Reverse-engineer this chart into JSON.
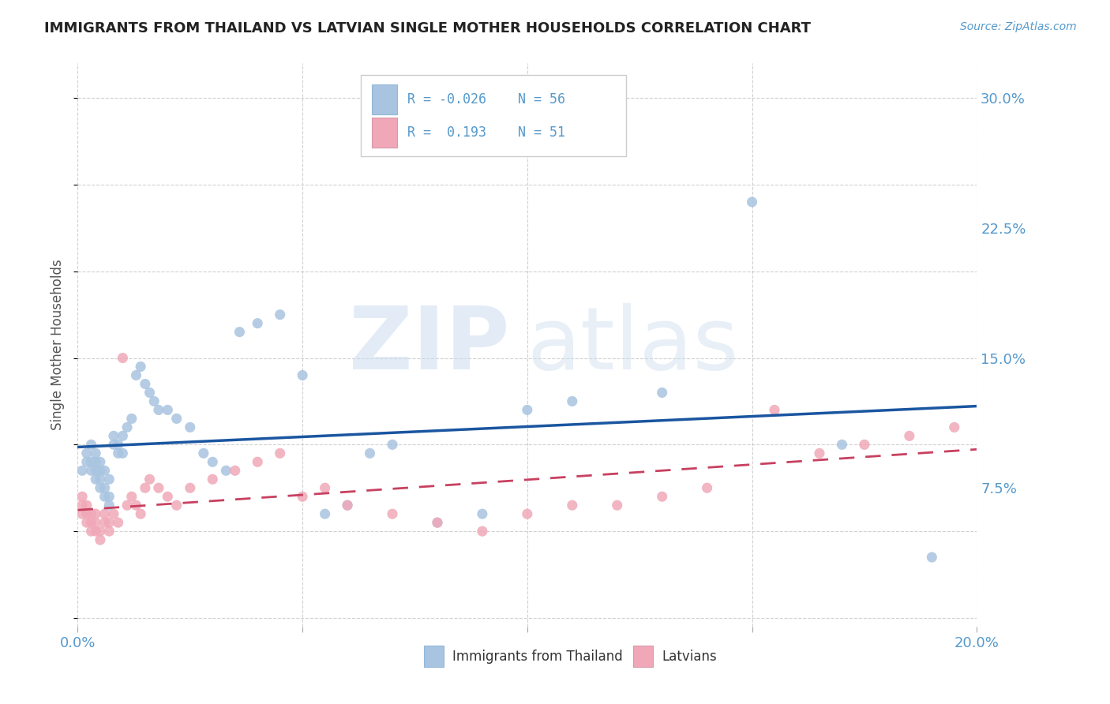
{
  "title": "IMMIGRANTS FROM THAILAND VS LATVIAN SINGLE MOTHER HOUSEHOLDS CORRELATION CHART",
  "source": "Source: ZipAtlas.com",
  "ylabel": "Single Mother Households",
  "xlim": [
    0.0,
    0.2
  ],
  "ylim": [
    -0.005,
    0.32
  ],
  "ytick_right": [
    0.075,
    0.15,
    0.225,
    0.3
  ],
  "ytick_right_labels": [
    "7.5%",
    "15.0%",
    "22.5%",
    "30.0%"
  ],
  "legend_r1": "R = -0.026",
  "legend_n1": "N = 56",
  "legend_r2": "R =  0.193",
  "legend_n2": "N = 51",
  "color_blue": "#a8c4e0",
  "color_pink": "#f0a8b8",
  "line_blue": "#1a56a0",
  "line_pink": "#c84060",
  "title_color": "#222222",
  "axis_color": "#5599cc",
  "grid_color": "#cccccc",
  "thailand_x": [
    0.001,
    0.002,
    0.002,
    0.003,
    0.003,
    0.003,
    0.004,
    0.004,
    0.004,
    0.004,
    0.005,
    0.005,
    0.005,
    0.005,
    0.006,
    0.006,
    0.006,
    0.007,
    0.007,
    0.007,
    0.008,
    0.008,
    0.009,
    0.009,
    0.01,
    0.01,
    0.011,
    0.012,
    0.013,
    0.014,
    0.015,
    0.016,
    0.017,
    0.018,
    0.02,
    0.022,
    0.025,
    0.028,
    0.03,
    0.033,
    0.036,
    0.04,
    0.045,
    0.05,
    0.055,
    0.06,
    0.065,
    0.07,
    0.08,
    0.09,
    0.1,
    0.11,
    0.13,
    0.15,
    0.17,
    0.19
  ],
  "thailand_y": [
    0.085,
    0.09,
    0.095,
    0.085,
    0.09,
    0.1,
    0.08,
    0.085,
    0.09,
    0.095,
    0.075,
    0.08,
    0.085,
    0.09,
    0.07,
    0.075,
    0.085,
    0.065,
    0.07,
    0.08,
    0.1,
    0.105,
    0.095,
    0.1,
    0.095,
    0.105,
    0.11,
    0.115,
    0.14,
    0.145,
    0.135,
    0.13,
    0.125,
    0.12,
    0.12,
    0.115,
    0.11,
    0.095,
    0.09,
    0.085,
    0.165,
    0.17,
    0.175,
    0.14,
    0.06,
    0.065,
    0.095,
    0.1,
    0.055,
    0.06,
    0.12,
    0.125,
    0.13,
    0.24,
    0.1,
    0.035
  ],
  "latvian_x": [
    0.001,
    0.001,
    0.001,
    0.002,
    0.002,
    0.002,
    0.003,
    0.003,
    0.003,
    0.004,
    0.004,
    0.004,
    0.005,
    0.005,
    0.006,
    0.006,
    0.007,
    0.007,
    0.008,
    0.009,
    0.01,
    0.011,
    0.012,
    0.013,
    0.014,
    0.015,
    0.016,
    0.018,
    0.02,
    0.022,
    0.025,
    0.03,
    0.035,
    0.04,
    0.045,
    0.05,
    0.055,
    0.06,
    0.07,
    0.08,
    0.09,
    0.1,
    0.11,
    0.12,
    0.13,
    0.14,
    0.155,
    0.165,
    0.175,
    0.185,
    0.195
  ],
  "latvian_y": [
    0.06,
    0.065,
    0.07,
    0.055,
    0.06,
    0.065,
    0.05,
    0.055,
    0.06,
    0.05,
    0.055,
    0.06,
    0.045,
    0.05,
    0.055,
    0.06,
    0.05,
    0.055,
    0.06,
    0.055,
    0.15,
    0.065,
    0.07,
    0.065,
    0.06,
    0.075,
    0.08,
    0.075,
    0.07,
    0.065,
    0.075,
    0.08,
    0.085,
    0.09,
    0.095,
    0.07,
    0.075,
    0.065,
    0.06,
    0.055,
    0.05,
    0.06,
    0.065,
    0.065,
    0.07,
    0.075,
    0.12,
    0.095,
    0.1,
    0.105,
    0.11
  ]
}
